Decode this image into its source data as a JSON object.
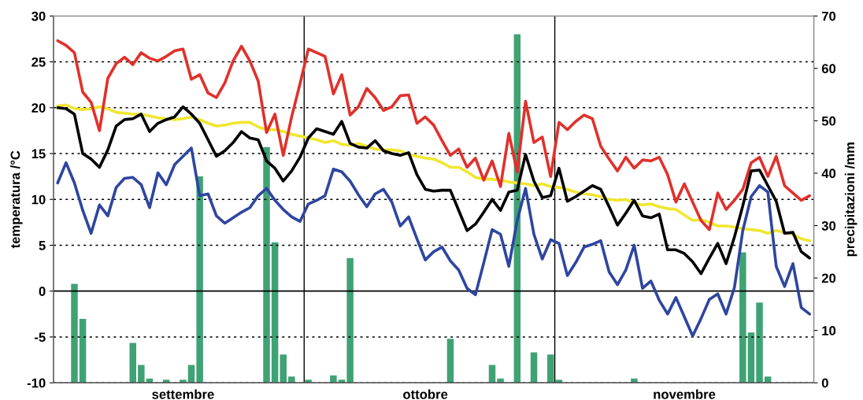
{
  "chart_data": {
    "type": "line",
    "ylabel": "temperatura /°C",
    "y2label": "precipitazioni /mm",
    "categories": [
      null,
      null,
      null,
      null,
      null,
      null,
      null,
      null,
      null,
      null,
      null,
      null,
      null,
      null,
      null,
      "settembre",
      null,
      null,
      null,
      null,
      null,
      null,
      null,
      null,
      null,
      null,
      null,
      null,
      null,
      null,
      null,
      null,
      null,
      null,
      null,
      null,
      null,
      null,
      null,
      null,
      null,
      null,
      null,
      null,
      "ottobre",
      null,
      null,
      null,
      null,
      null,
      null,
      null,
      null,
      null,
      null,
      null,
      null,
      null,
      null,
      null,
      null,
      null,
      null,
      null,
      null,
      null,
      null,
      null,
      null,
      null,
      null,
      null,
      null,
      null,
      null,
      "novembre",
      null,
      null,
      null,
      null,
      null,
      null,
      null,
      null,
      null,
      null,
      null,
      null,
      null,
      null,
      null
    ],
    "ylim": [
      -10,
      30
    ],
    "yticks": [
      -10,
      -5,
      0,
      5,
      10,
      15,
      20,
      25,
      30
    ],
    "y2lim": [
      0,
      70
    ],
    "y2ticks": [
      0,
      10,
      20,
      30,
      40,
      50,
      60,
      70
    ],
    "grid": "y",
    "line_style": "solid",
    "marker": "none",
    "ref_lines": [
      {
        "axis": "y",
        "value": 0,
        "label": null,
        "color": "#000000"
      }
    ],
    "series": [
      {
        "type": "bar",
        "axis": "y2",
        "color": "#3fa275",
        "values": [
          0,
          0,
          18.9,
          12.2,
          0,
          0,
          0,
          0,
          0,
          7.6,
          3.4,
          0.8,
          0,
          0.6,
          0,
          0.6,
          3.4,
          39.4,
          0,
          0,
          0,
          0,
          0,
          0,
          0,
          45.0,
          26.8,
          5.4,
          1.2,
          0,
          0.6,
          0,
          0,
          1.4,
          0.6,
          23.8,
          0,
          0,
          0,
          0,
          0,
          0,
          0,
          0,
          0,
          0,
          0,
          8.4,
          0,
          0,
          0,
          0,
          3.4,
          0.8,
          0,
          66.5,
          0,
          5.8,
          0,
          5.4,
          0.6,
          0,
          0,
          0,
          0,
          0,
          0,
          0,
          0,
          0.8,
          0,
          0,
          0,
          0,
          0,
          0,
          0,
          0,
          0,
          0,
          0,
          0,
          24.9,
          9.6,
          15.3,
          1.2,
          0,
          0,
          0,
          0,
          0
        ]
      },
      {
        "color": "#f0e632",
        "values": [
          20.2,
          20.3,
          19.9,
          19.8,
          19.9,
          20.1,
          19.9,
          19.5,
          19.4,
          19.3,
          19.3,
          19.1,
          18.9,
          18.8,
          18.7,
          18.8,
          19.0,
          18.7,
          18.3,
          18.0,
          18.1,
          18.3,
          18.4,
          18.4,
          17.9,
          17.6,
          17.6,
          17.4,
          17.1,
          16.9,
          16.7,
          16.5,
          16.2,
          16.4,
          16.0,
          15.9,
          16.1,
          15.8,
          15.5,
          15.4,
          15.4,
          15.3,
          14.9,
          14.7,
          14.5,
          14.4,
          14.0,
          13.5,
          13.5,
          13.0,
          12.4,
          12.2,
          12.2,
          12.1,
          11.9,
          11.8,
          11.7,
          11.5,
          11.7,
          11.4,
          11.3,
          11.1,
          10.8,
          10.6,
          10.5,
          10.3,
          10.0,
          9.9,
          10.0,
          9.6,
          9.4,
          9.5,
          9.2,
          9.0,
          8.9,
          8.3,
          7.7,
          7.8,
          7.5,
          7.1,
          7.1,
          7.0,
          6.8,
          6.7,
          6.6,
          6.3,
          6.6,
          6.4,
          6.2,
          5.7,
          5.5
        ]
      },
      {
        "color": "#e0312b",
        "values": [
          27.3,
          26.8,
          26.0,
          21.7,
          20.6,
          17.5,
          23.2,
          24.8,
          25.5,
          24.7,
          26.0,
          25.4,
          25.1,
          25.6,
          26.2,
          26.4,
          23.1,
          23.6,
          21.6,
          21.1,
          22.7,
          25.1,
          26.7,
          25.1,
          22.9,
          17.3,
          19.3,
          14.8,
          19.0,
          22.6,
          26.4,
          26.0,
          25.6,
          21.5,
          23.6,
          19.2,
          20.1,
          22.1,
          21.1,
          19.7,
          20.1,
          21.3,
          21.4,
          18.3,
          19.0,
          18.1,
          16.4,
          14.8,
          15.5,
          13.5,
          14.5,
          12.1,
          14.2,
          11.4,
          17.2,
          13.0,
          20.7,
          16.2,
          16.8,
          12.5,
          18.4,
          17.6,
          18.5,
          19.2,
          18.8,
          15.8,
          14.4,
          13.1,
          14.6,
          13.4,
          14.3,
          14.2,
          14.6,
          12.7,
          9.7,
          11.7,
          9.7,
          7.7,
          6.7,
          10.7,
          8.9,
          9.9,
          11.1,
          14.0,
          14.6,
          12.5,
          14.7,
          11.5,
          10.7,
          9.9,
          10.4
        ]
      },
      {
        "color": "#000000",
        "values": [
          20.0,
          19.9,
          19.3,
          15.0,
          14.4,
          13.5,
          15.4,
          18.0,
          18.7,
          18.8,
          19.3,
          17.4,
          18.3,
          18.7,
          19.0,
          20.1,
          19.3,
          18.3,
          16.5,
          14.7,
          15.3,
          16.2,
          17.4,
          16.7,
          16.5,
          14.2,
          13.4,
          12.0,
          13.1,
          14.6,
          16.7,
          17.7,
          17.4,
          17.1,
          18.5,
          16.1,
          15.7,
          15.6,
          16.4,
          15.3,
          15.0,
          14.8,
          15.1,
          12.7,
          11.1,
          10.9,
          11.0,
          11.0,
          8.8,
          6.6,
          7.3,
          8.6,
          10.0,
          8.8,
          10.8,
          11.0,
          14.9,
          12.0,
          10.2,
          10.4,
          13.4,
          9.8,
          10.3,
          10.9,
          11.5,
          11.1,
          9.2,
          7.2,
          8.5,
          9.9,
          8.2,
          8.0,
          8.4,
          4.5,
          4.5,
          4.1,
          3.2,
          1.9,
          3.6,
          5.2,
          3.0,
          5.9,
          9.3,
          13.1,
          13.2,
          11.5,
          9.8,
          6.3,
          6.4,
          4.3,
          3.6
        ]
      },
      {
        "color": "#2e45a0",
        "values": [
          11.8,
          14.0,
          11.8,
          8.8,
          6.3,
          9.4,
          8.2,
          11.3,
          12.3,
          12.4,
          11.6,
          9.1,
          12.9,
          11.6,
          13.8,
          14.7,
          15.6,
          10.4,
          10.6,
          8.2,
          7.4,
          8.0,
          8.6,
          9.1,
          10.4,
          11.2,
          9.9,
          8.9,
          8.1,
          7.6,
          9.5,
          9.9,
          10.4,
          13.3,
          13.0,
          12.0,
          10.5,
          9.2,
          10.6,
          11.1,
          9.7,
          7.1,
          8.1,
          5.7,
          3.4,
          4.3,
          4.8,
          3.3,
          2.3,
          0.3,
          -0.4,
          3.1,
          6.7,
          6.2,
          2.7,
          7.7,
          11.2,
          6.2,
          3.5,
          5.6,
          5.2,
          1.7,
          3.1,
          4.8,
          5.1,
          5.5,
          2.1,
          0.7,
          2.3,
          5.0,
          0.3,
          1.1,
          -1.0,
          -2.5,
          -0.7,
          -2.8,
          -4.9,
          -3.0,
          -0.9,
          -0.3,
          -2.5,
          0.4,
          6.6,
          10.3,
          11.5,
          10.8,
          2.7,
          0.5,
          3.0,
          -1.8,
          -2.5
        ]
      }
    ]
  }
}
